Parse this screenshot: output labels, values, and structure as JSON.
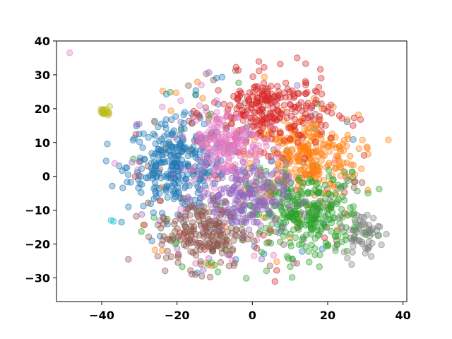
{
  "chart_data": {
    "type": "scatter",
    "title": "",
    "xlabel": "",
    "ylabel": "",
    "xlim": [
      -52,
      41
    ],
    "ylim": [
      -37,
      40
    ],
    "grid": false,
    "legend": "none",
    "point_alpha": 0.35,
    "x_ticks": [
      {
        "value": -40,
        "label": "−40"
      },
      {
        "value": -20,
        "label": "−20"
      },
      {
        "value": 0,
        "label": "0"
      },
      {
        "value": 20,
        "label": "20"
      },
      {
        "value": 40,
        "label": "40"
      }
    ],
    "y_ticks": [
      {
        "value": -30,
        "label": "−30"
      },
      {
        "value": -20,
        "label": "−20"
      },
      {
        "value": -10,
        "label": "−10"
      },
      {
        "value": 0,
        "label": "0"
      },
      {
        "value": 10,
        "label": "10"
      },
      {
        "value": 20,
        "label": "20"
      },
      {
        "value": 30,
        "label": "30"
      },
      {
        "value": 40,
        "label": "40"
      }
    ],
    "clusters": [
      {
        "color": "#1f77b4",
        "center": [
          -20,
          3
        ],
        "spread": [
          6.5,
          6.5
        ],
        "count": 300
      },
      {
        "color": "#ff7f0e",
        "center": [
          14,
          6
        ],
        "spread": [
          7,
          6
        ],
        "count": 280
      },
      {
        "color": "#2ca02c",
        "center": [
          14,
          -11
        ],
        "spread": [
          7.5,
          6
        ],
        "count": 320
      },
      {
        "color": "#d62728",
        "center": [
          5,
          19
        ],
        "spread": [
          8,
          5.5
        ],
        "count": 260
      },
      {
        "color": "#9467bd",
        "center": [
          -3,
          -6
        ],
        "spread": [
          6,
          5
        ],
        "count": 230
      },
      {
        "color": "#8c564b",
        "center": [
          -13,
          -17
        ],
        "spread": [
          6,
          5
        ],
        "count": 190
      },
      {
        "color": "#e377c2",
        "center": [
          -7,
          10
        ],
        "spread": [
          5,
          5
        ],
        "count": 170
      },
      {
        "color": "#7f7f7f",
        "center": [
          29,
          -17
        ],
        "spread": [
          2.5,
          3
        ],
        "count": 55
      },
      {
        "color": "#bcbd22",
        "center": [
          -39,
          19
        ],
        "spread": [
          0.7,
          0.6
        ],
        "count": 20
      },
      {
        "color": "#17becf",
        "center": [
          -37,
          -13
        ],
        "spread": [
          0.5,
          0.5
        ],
        "count": 2
      }
    ],
    "scattered_noise": {
      "count": 260,
      "radius": 34
    }
  }
}
